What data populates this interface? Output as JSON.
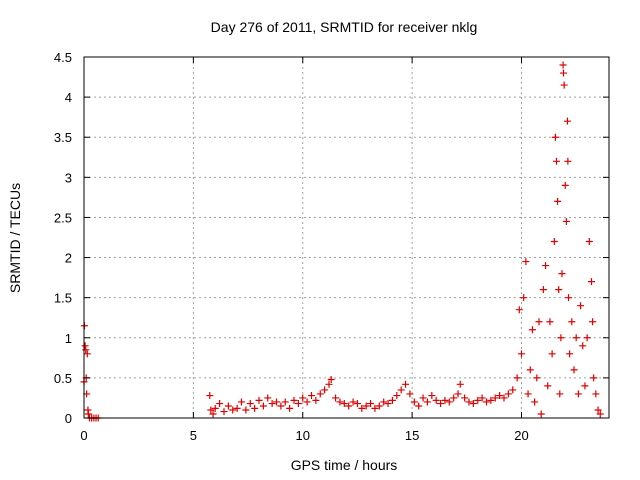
{
  "chart_data": {
    "type": "scatter",
    "title": "Day 276 of 2011, SRMTID for receiver nklg",
    "xlabel": "GPS time / hours",
    "ylabel": "SRMTID / TECUs",
    "xlim": [
      0,
      24
    ],
    "ylim": [
      0,
      4.5
    ],
    "xticks": [
      0,
      5,
      10,
      15,
      20
    ],
    "yticks": [
      0,
      0.5,
      1,
      1.5,
      2,
      2.5,
      3,
      3.5,
      4,
      4.5
    ],
    "xtick_labels": [
      "0",
      "5",
      "10",
      "15",
      "20"
    ],
    "ytick_labels": [
      "0",
      "0.5",
      "1",
      "1.5",
      "2",
      "2.5",
      "3",
      "3.5",
      "4",
      "4.5"
    ],
    "grid": true,
    "marker": "+",
    "color": "#e00000",
    "series": [
      {
        "name": "SRMTID",
        "points": [
          [
            0.0,
            0.45
          ],
          [
            0.02,
            1.15
          ],
          [
            0.05,
            0.9
          ],
          [
            0.08,
            0.85
          ],
          [
            0.1,
            0.5
          ],
          [
            0.12,
            0.3
          ],
          [
            0.15,
            0.8
          ],
          [
            0.18,
            0.1
          ],
          [
            0.2,
            0.05
          ],
          [
            0.25,
            0.0
          ],
          [
            0.35,
            0.0
          ],
          [
            0.45,
            0.0
          ],
          [
            0.55,
            0.0
          ],
          [
            0.65,
            0.0
          ],
          [
            5.75,
            0.28
          ],
          [
            5.8,
            0.1
          ],
          [
            5.9,
            0.05
          ],
          [
            6.0,
            0.12
          ],
          [
            6.2,
            0.18
          ],
          [
            6.4,
            0.08
          ],
          [
            6.6,
            0.15
          ],
          [
            6.8,
            0.1
          ],
          [
            7.0,
            0.12
          ],
          [
            7.2,
            0.2
          ],
          [
            7.4,
            0.1
          ],
          [
            7.6,
            0.18
          ],
          [
            7.8,
            0.12
          ],
          [
            8.0,
            0.22
          ],
          [
            8.2,
            0.15
          ],
          [
            8.4,
            0.25
          ],
          [
            8.6,
            0.18
          ],
          [
            8.8,
            0.2
          ],
          [
            9.0,
            0.15
          ],
          [
            9.2,
            0.2
          ],
          [
            9.4,
            0.12
          ],
          [
            9.6,
            0.22
          ],
          [
            9.8,
            0.18
          ],
          [
            10.0,
            0.25
          ],
          [
            10.2,
            0.2
          ],
          [
            10.4,
            0.28
          ],
          [
            10.6,
            0.22
          ],
          [
            10.8,
            0.3
          ],
          [
            11.0,
            0.35
          ],
          [
            11.2,
            0.42
          ],
          [
            11.3,
            0.48
          ],
          [
            11.5,
            0.25
          ],
          [
            11.7,
            0.2
          ],
          [
            11.9,
            0.18
          ],
          [
            12.1,
            0.15
          ],
          [
            12.3,
            0.2
          ],
          [
            12.5,
            0.18
          ],
          [
            12.7,
            0.12
          ],
          [
            12.9,
            0.15
          ],
          [
            13.1,
            0.18
          ],
          [
            13.3,
            0.12
          ],
          [
            13.5,
            0.15
          ],
          [
            13.7,
            0.2
          ],
          [
            13.9,
            0.18
          ],
          [
            14.1,
            0.22
          ],
          [
            14.3,
            0.28
          ],
          [
            14.5,
            0.35
          ],
          [
            14.7,
            0.42
          ],
          [
            14.9,
            0.3
          ],
          [
            15.1,
            0.2
          ],
          [
            15.3,
            0.15
          ],
          [
            15.5,
            0.25
          ],
          [
            15.7,
            0.2
          ],
          [
            15.9,
            0.28
          ],
          [
            16.1,
            0.22
          ],
          [
            16.3,
            0.18
          ],
          [
            16.5,
            0.22
          ],
          [
            16.7,
            0.2
          ],
          [
            16.9,
            0.25
          ],
          [
            17.1,
            0.3
          ],
          [
            17.2,
            0.42
          ],
          [
            17.4,
            0.25
          ],
          [
            17.6,
            0.2
          ],
          [
            17.8,
            0.18
          ],
          [
            18.0,
            0.22
          ],
          [
            18.2,
            0.25
          ],
          [
            18.4,
            0.2
          ],
          [
            18.6,
            0.22
          ],
          [
            18.8,
            0.25
          ],
          [
            19.0,
            0.28
          ],
          [
            19.2,
            0.25
          ],
          [
            19.4,
            0.3
          ],
          [
            19.6,
            0.35
          ],
          [
            19.8,
            0.5
          ],
          [
            19.9,
            1.35
          ],
          [
            20.0,
            0.8
          ],
          [
            20.1,
            1.5
          ],
          [
            20.2,
            1.95
          ],
          [
            20.3,
            0.3
          ],
          [
            20.4,
            0.6
          ],
          [
            20.5,
            1.1
          ],
          [
            20.6,
            0.2
          ],
          [
            20.7,
            0.5
          ],
          [
            20.8,
            1.2
          ],
          [
            20.9,
            0.05
          ],
          [
            21.0,
            1.6
          ],
          [
            21.1,
            1.9
          ],
          [
            21.2,
            0.4
          ],
          [
            21.3,
            1.2
          ],
          [
            21.4,
            0.8
          ],
          [
            21.5,
            2.2
          ],
          [
            21.55,
            3.5
          ],
          [
            21.6,
            3.2
          ],
          [
            21.65,
            2.7
          ],
          [
            21.7,
            1.6
          ],
          [
            21.75,
            0.3
          ],
          [
            21.8,
            1.0
          ],
          [
            21.85,
            1.8
          ],
          [
            21.9,
            4.4
          ],
          [
            21.92,
            4.3
          ],
          [
            21.95,
            4.15
          ],
          [
            22.0,
            2.9
          ],
          [
            22.05,
            2.45
          ],
          [
            22.1,
            3.7
          ],
          [
            22.12,
            3.2
          ],
          [
            22.15,
            1.5
          ],
          [
            22.2,
            0.8
          ],
          [
            22.3,
            1.2
          ],
          [
            22.4,
            0.6
          ],
          [
            22.5,
            1.0
          ],
          [
            22.6,
            0.3
          ],
          [
            22.7,
            1.4
          ],
          [
            22.8,
            0.9
          ],
          [
            22.9,
            0.4
          ],
          [
            23.0,
            1.0
          ],
          [
            23.1,
            2.2
          ],
          [
            23.2,
            1.7
          ],
          [
            23.25,
            1.2
          ],
          [
            23.3,
            0.5
          ],
          [
            23.4,
            0.3
          ],
          [
            23.5,
            0.1
          ],
          [
            23.6,
            0.05
          ]
        ]
      }
    ]
  }
}
